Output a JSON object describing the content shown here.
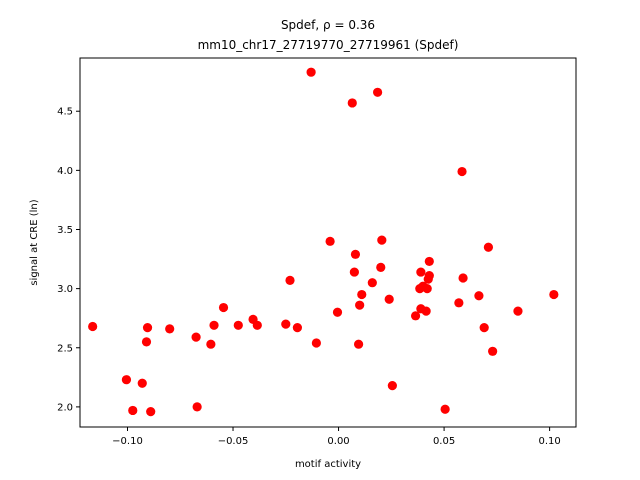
{
  "chart_data": {
    "type": "scatter",
    "title_line1": "Spdef, ρ = 0.36",
    "title_line2": "mm10_chr17_27719770_27719961 (Spdef)",
    "xlabel": "motif activity",
    "ylabel": "signal at CRE (ln)",
    "xlim": [
      -0.1225,
      0.1125
    ],
    "ylim": [
      1.83,
      4.95
    ],
    "xticks": [
      -0.1,
      -0.05,
      0.0,
      0.05,
      0.1
    ],
    "xtick_labels": [
      "−0.10",
      "−0.05",
      "0.00",
      "0.05",
      "0.10"
    ],
    "yticks": [
      2.0,
      2.5,
      3.0,
      3.5,
      4.0,
      4.5
    ],
    "ytick_labels": [
      "2.0",
      "2.5",
      "3.0",
      "3.5",
      "4.0",
      "4.5"
    ],
    "grid": false,
    "marker_color": "#ff0000",
    "points": [
      {
        "x": -0.1165,
        "y": 2.68
      },
      {
        "x": -0.1005,
        "y": 2.23
      },
      {
        "x": -0.0975,
        "y": 1.97
      },
      {
        "x": -0.093,
        "y": 2.2
      },
      {
        "x": -0.091,
        "y": 2.55
      },
      {
        "x": -0.0905,
        "y": 2.67
      },
      {
        "x": -0.089,
        "y": 1.96
      },
      {
        "x": -0.08,
        "y": 2.66
      },
      {
        "x": -0.0675,
        "y": 2.59
      },
      {
        "x": -0.067,
        "y": 2.0
      },
      {
        "x": -0.0605,
        "y": 2.53
      },
      {
        "x": -0.059,
        "y": 2.69
      },
      {
        "x": -0.0545,
        "y": 2.84
      },
      {
        "x": -0.0475,
        "y": 2.69
      },
      {
        "x": -0.0405,
        "y": 2.74
      },
      {
        "x": -0.0385,
        "y": 2.69
      },
      {
        "x": -0.025,
        "y": 2.7
      },
      {
        "x": -0.023,
        "y": 3.07
      },
      {
        "x": -0.0195,
        "y": 2.67
      },
      {
        "x": -0.013,
        "y": 4.83
      },
      {
        "x": -0.0105,
        "y": 2.54
      },
      {
        "x": -0.004,
        "y": 3.4
      },
      {
        "x": -0.0005,
        "y": 2.8
      },
      {
        "x": 0.0065,
        "y": 4.57
      },
      {
        "x": 0.0075,
        "y": 3.14
      },
      {
        "x": 0.008,
        "y": 3.29
      },
      {
        "x": 0.0095,
        "y": 2.53
      },
      {
        "x": 0.01,
        "y": 2.86
      },
      {
        "x": 0.011,
        "y": 2.95
      },
      {
        "x": 0.016,
        "y": 3.05
      },
      {
        "x": 0.0185,
        "y": 4.66
      },
      {
        "x": 0.02,
        "y": 3.18
      },
      {
        "x": 0.0205,
        "y": 3.41
      },
      {
        "x": 0.024,
        "y": 2.91
      },
      {
        "x": 0.0255,
        "y": 2.18
      },
      {
        "x": 0.0365,
        "y": 2.77
      },
      {
        "x": 0.0385,
        "y": 3.0
      },
      {
        "x": 0.039,
        "y": 2.83
      },
      {
        "x": 0.039,
        "y": 3.14
      },
      {
        "x": 0.04,
        "y": 3.02
      },
      {
        "x": 0.0415,
        "y": 2.81
      },
      {
        "x": 0.042,
        "y": 3.0
      },
      {
        "x": 0.0425,
        "y": 3.08
      },
      {
        "x": 0.043,
        "y": 3.11
      },
      {
        "x": 0.043,
        "y": 3.23
      },
      {
        "x": 0.0505,
        "y": 1.98
      },
      {
        "x": 0.057,
        "y": 2.88
      },
      {
        "x": 0.0585,
        "y": 3.99
      },
      {
        "x": 0.059,
        "y": 3.09
      },
      {
        "x": 0.0665,
        "y": 2.94
      },
      {
        "x": 0.069,
        "y": 2.67
      },
      {
        "x": 0.071,
        "y": 3.35
      },
      {
        "x": 0.073,
        "y": 2.47
      },
      {
        "x": 0.085,
        "y": 2.81
      },
      {
        "x": 0.102,
        "y": 2.95
      }
    ]
  }
}
